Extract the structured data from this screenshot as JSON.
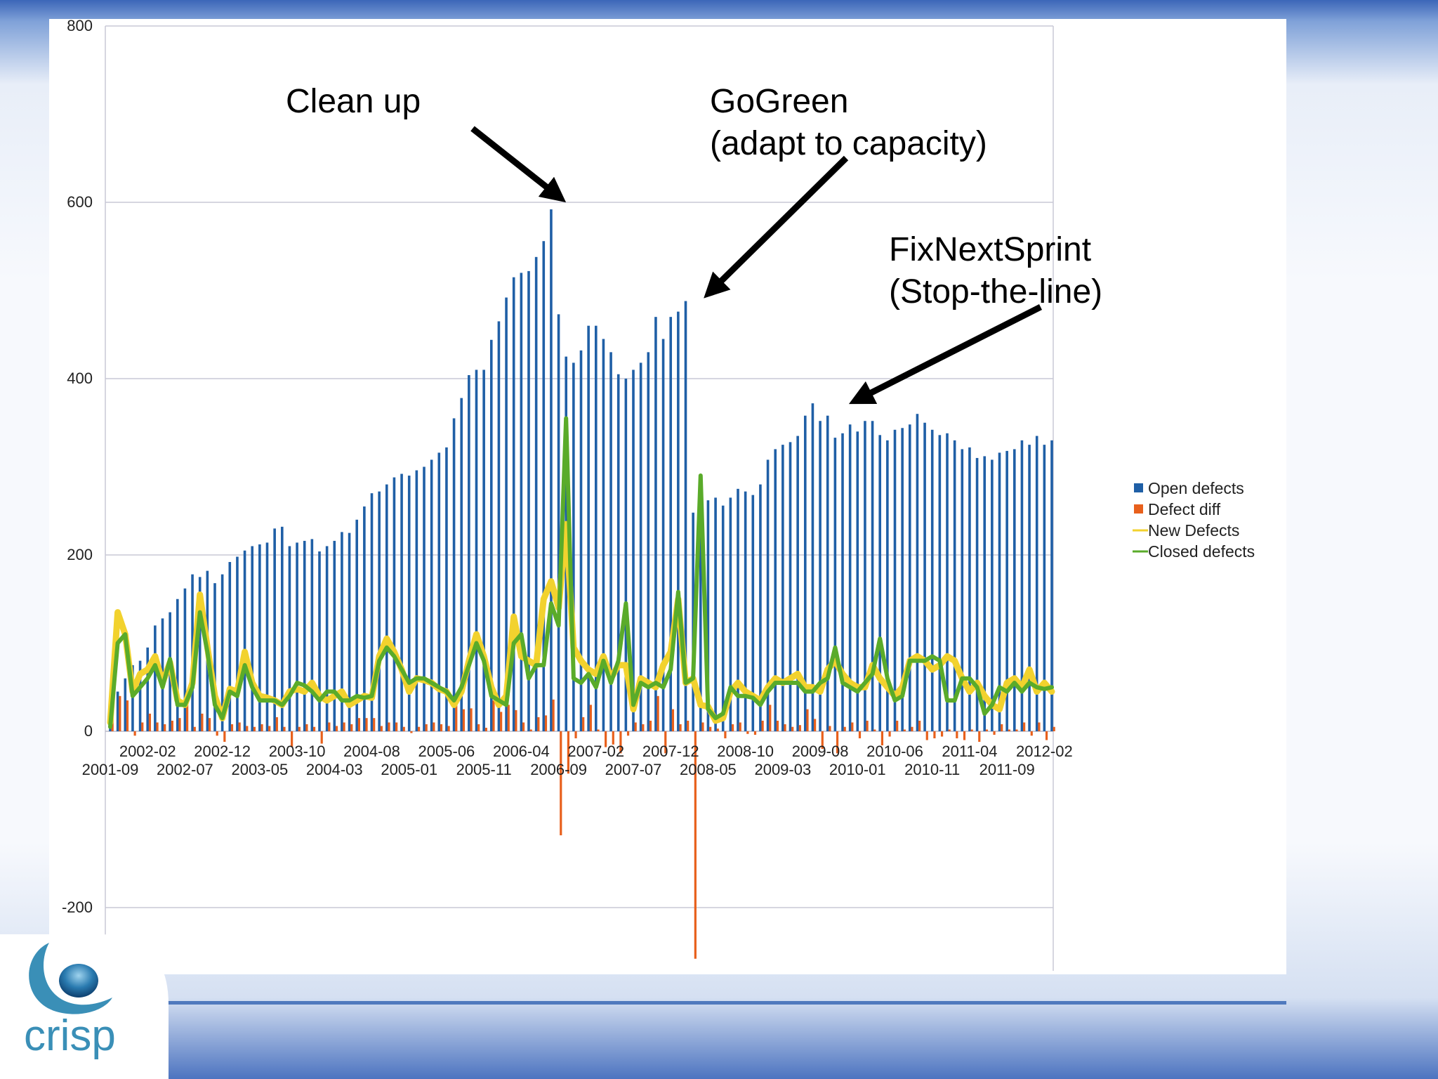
{
  "chart_data": {
    "type": "bar",
    "y_axis": {
      "ylim": [
        -270,
        800
      ],
      "ticks": [
        800,
        600,
        400,
        200,
        0,
        -200
      ],
      "grid": true
    },
    "x_tick_labels_upper": [
      "2002-02",
      "2002-12",
      "2003-10",
      "2004-08",
      "2005-06",
      "2006-04",
      "2007-02",
      "2007-12",
      "2008-10",
      "2009-08",
      "2010-06",
      "2011-04",
      "2012-02"
    ],
    "x_tick_labels_lower": [
      "2001-09",
      "2002-07",
      "2003-05",
      "2004-03",
      "2005-01",
      "2005-11",
      "2006-09",
      "2007-07",
      "2008-05",
      "2009-03",
      "2010-01",
      "2010-11",
      "2011-09"
    ],
    "x_start": "2001-09",
    "series": [
      {
        "name": "Open defects",
        "kind": "bar",
        "color": "#1f5fa6",
        "values": [
          30,
          45,
          60,
          75,
          80,
          95,
          120,
          128,
          135,
          150,
          162,
          178,
          175,
          182,
          168,
          178,
          192,
          198,
          205,
          210,
          212,
          214,
          230,
          232,
          210,
          214,
          216,
          218,
          204,
          210,
          216,
          226,
          225,
          240,
          255,
          270,
          272,
          280,
          288,
          292,
          290,
          296,
          300,
          308,
          316,
          322,
          355,
          378,
          404,
          410,
          410,
          444,
          465,
          492,
          515,
          520,
          522,
          538,
          556,
          592,
          473,
          425,
          418,
          432,
          460,
          460,
          445,
          430,
          405,
          400,
          410,
          418,
          430,
          470,
          445,
          470,
          476,
          488,
          248,
          258,
          262,
          265,
          256,
          265,
          275,
          272,
          268,
          280,
          308,
          320,
          325,
          328,
          335,
          358,
          372,
          352,
          358,
          333,
          338,
          348,
          340,
          352,
          352,
          336,
          330,
          342,
          344,
          348,
          360,
          350,
          342,
          336,
          338,
          330,
          320,
          322,
          310,
          312,
          308,
          316,
          318,
          320,
          330,
          325,
          335,
          325,
          330
        ]
      },
      {
        "name": "Defect diff",
        "kind": "bar",
        "color": "#e8601c",
        "values": [
          30,
          40,
          35,
          -5,
          10,
          20,
          10,
          8,
          12,
          15,
          30,
          5,
          20,
          15,
          -5,
          -12,
          8,
          10,
          6,
          5,
          8,
          6,
          16,
          5,
          -18,
          5,
          8,
          5,
          -14,
          10,
          6,
          10,
          8,
          15,
          15,
          15,
          6,
          10,
          10,
          5,
          -2,
          5,
          8,
          10,
          8,
          6,
          35,
          25,
          26,
          8,
          4,
          35,
          22,
          30,
          24,
          10,
          2,
          16,
          18,
          36,
          -118,
          -48,
          -8,
          16,
          30,
          2,
          -18,
          -15,
          -25,
          -5,
          10,
          8,
          12,
          40,
          -25,
          25,
          8,
          12,
          -258,
          10,
          5,
          3,
          -8,
          8,
          10,
          -3,
          -4,
          12,
          30,
          12,
          8,
          5,
          7,
          25,
          14,
          -20,
          6,
          -25,
          5,
          10,
          -8,
          12,
          2,
          -16,
          -6,
          12,
          2,
          5,
          12,
          -10,
          -8,
          -6,
          2,
          -8,
          -10,
          2,
          -12,
          2,
          -4,
          8,
          2,
          2,
          10,
          -5,
          10,
          -10,
          5
        ]
      },
      {
        "name": "New Defects",
        "kind": "line",
        "color": "#f2d22e",
        "values": [
          10,
          135,
          110,
          45,
          65,
          70,
          85,
          55,
          78,
          35,
          30,
          55,
          155,
          95,
          40,
          15,
          48,
          45,
          90,
          55,
          40,
          38,
          35,
          30,
          45,
          48,
          45,
          55,
          40,
          35,
          40,
          45,
          30,
          35,
          40,
          38,
          85,
          105,
          90,
          70,
          45,
          60,
          58,
          55,
          48,
          45,
          30,
          45,
          80,
          110,
          85,
          50,
          30,
          40,
          130,
          85,
          80,
          75,
          150,
          170,
          140,
          235,
          95,
          80,
          70,
          65,
          85,
          60,
          75,
          75,
          25,
          60,
          55,
          50,
          75,
          90,
          150,
          55,
          60,
          30,
          28,
          12,
          15,
          45,
          55,
          45,
          40,
          35,
          50,
          60,
          55,
          60,
          65,
          50,
          50,
          45,
          70,
          80,
          65,
          55,
          50,
          50,
          75,
          60,
          50,
          40,
          50,
          80,
          85,
          80,
          70,
          75,
          85,
          80,
          60,
          45,
          55,
          40,
          30,
          25,
          55,
          60,
          50,
          70,
          45,
          55,
          45
        ]
      },
      {
        "name": "Closed defects",
        "kind": "line",
        "color": "#5aab2a",
        "values": [
          5,
          100,
          110,
          40,
          50,
          60,
          75,
          50,
          82,
          30,
          30,
          50,
          135,
          90,
          30,
          15,
          45,
          40,
          75,
          50,
          35,
          35,
          35,
          30,
          40,
          55,
          52,
          45,
          35,
          45,
          45,
          35,
          35,
          40,
          38,
          40,
          80,
          95,
          85,
          70,
          55,
          60,
          60,
          55,
          50,
          45,
          35,
          50,
          75,
          100,
          80,
          40,
          35,
          30,
          100,
          110,
          60,
          75,
          75,
          145,
          120,
          355,
          60,
          55,
          65,
          50,
          80,
          55,
          80,
          145,
          30,
          55,
          50,
          55,
          50,
          70,
          158,
          55,
          60,
          290,
          25,
          15,
          20,
          50,
          40,
          40,
          38,
          30,
          45,
          55,
          55,
          55,
          55,
          45,
          45,
          55,
          60,
          95,
          55,
          50,
          45,
          55,
          65,
          105,
          60,
          35,
          40,
          80,
          80,
          80,
          85,
          80,
          35,
          35,
          60,
          60,
          50,
          20,
          30,
          50,
          45,
          55,
          45,
          55,
          50,
          48,
          50
        ]
      }
    ],
    "annotations": [
      {
        "lines": [
          "Clean up"
        ],
        "points_to": "2006-08"
      },
      {
        "lines": [
          "GoGreen",
          "(adapt to capacity)"
        ],
        "points_to": "2008-04"
      },
      {
        "lines": [
          "FixNextSprint",
          "(Stop-the-line)"
        ],
        "points_to": "2009-08"
      }
    ],
    "legend": {
      "placement": "right"
    }
  },
  "logo": {
    "text": "crisp",
    "color": "#3a8fb7"
  }
}
